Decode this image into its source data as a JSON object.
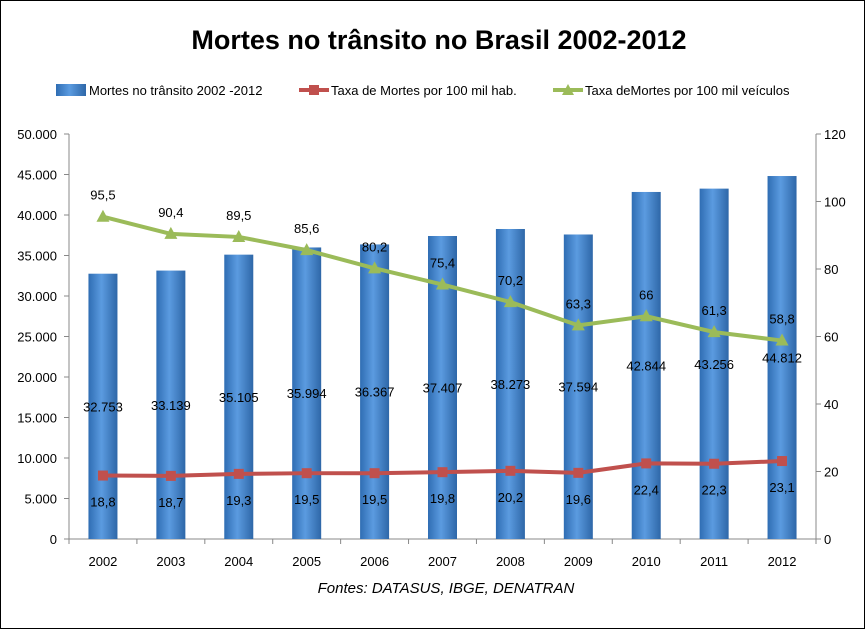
{
  "chart_data": {
    "type": "bar",
    "title": "Mortes no trânsito no Brasil 2002-2012",
    "source": "Fontes: DATASUS, IBGE, DENATRAN",
    "categories": [
      "2002",
      "2003",
      "2004",
      "2005",
      "2006",
      "2007",
      "2008",
      "2009",
      "2010",
      "2011",
      "2012"
    ],
    "left_axis": {
      "range": [
        0,
        50000
      ],
      "ticks": [
        "0",
        "5.000",
        "10.000",
        "15.000",
        "20.000",
        "25.000",
        "30.000",
        "35.000",
        "40.000",
        "45.000",
        "50.000"
      ]
    },
    "right_axis": {
      "range": [
        0,
        120
      ],
      "ticks": [
        "0",
        "20",
        "40",
        "60",
        "80",
        "100",
        "120"
      ]
    },
    "series": [
      {
        "name": "Mortes no trânsito 2002 -2012",
        "type": "bar",
        "axis": "left",
        "color": "#4a86c8",
        "values": [
          32753,
          33139,
          35105,
          35994,
          36367,
          37407,
          38273,
          37594,
          42844,
          43256,
          44812
        ],
        "labels": [
          "32.753",
          "33.139",
          "35.105",
          "35.994",
          "36.367",
          "37.407",
          "38.273",
          "37.594",
          "42.844",
          "43.256",
          "44.812"
        ]
      },
      {
        "name": "Taxa de Mortes por 100 mil hab.",
        "type": "line",
        "axis": "right",
        "marker": "square",
        "color": "#c0504d",
        "values": [
          18.8,
          18.7,
          19.3,
          19.5,
          19.5,
          19.8,
          20.2,
          19.6,
          22.4,
          22.3,
          23.1
        ],
        "labels": [
          "18,8",
          "18,7",
          "19,3",
          "19,5",
          "19,5",
          "19,8",
          "20,2",
          "19,6",
          "22,4",
          "22,3",
          "23,1"
        ]
      },
      {
        "name": "Taxa deMortes por 100 mil veículos",
        "type": "line",
        "axis": "right",
        "marker": "triangle",
        "color": "#9bbb59",
        "values": [
          95.5,
          90.4,
          89.5,
          85.6,
          80.2,
          75.4,
          70.2,
          63.3,
          66,
          61.3,
          58.8
        ],
        "labels": [
          "95,5",
          "90,4",
          "89,5",
          "85,6",
          "80,2",
          "75,4",
          "70,2",
          "63,3",
          "66",
          "61,3",
          "58,8"
        ]
      }
    ]
  }
}
